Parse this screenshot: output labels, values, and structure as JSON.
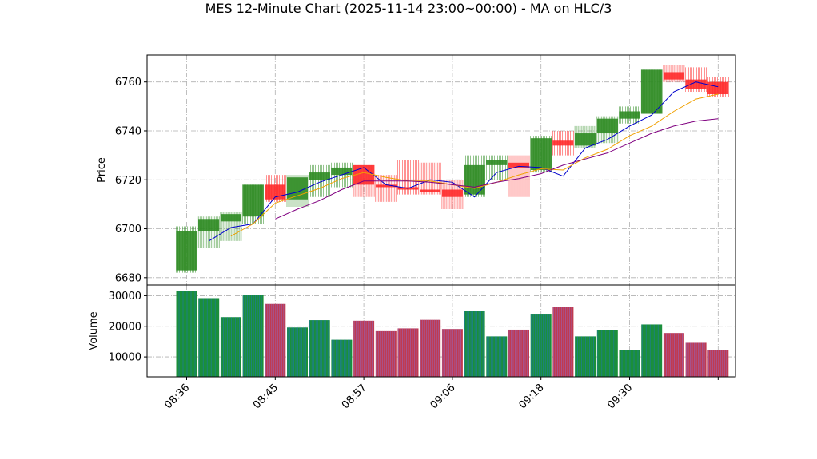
{
  "title": "MES 12-Minute Chart (2025-11-14 23:00~00:00) - MA on HLC/3",
  "colors": {
    "up": "#2e8b22",
    "down": "#ff2a2a",
    "ma_fast": "#0000cc",
    "ma_mid": "#f0a000",
    "ma_slow": "#800080",
    "volume_up_edge": "#1f77b4",
    "volume_down_edge": "#9467bd"
  },
  "chart_data": [
    {
      "type": "candlestick",
      "ylabel": "Price",
      "ylim": [
        6677,
        6771
      ],
      "yticks": [
        6680,
        6700,
        6720,
        6740,
        6760
      ],
      "grid": true,
      "candles": [
        {
          "open": 6683,
          "high": 6701,
          "low": 6682,
          "close": 6699
        },
        {
          "open": 6699,
          "high": 6705,
          "low": 6692,
          "close": 6704
        },
        {
          "open": 6703,
          "high": 6707,
          "low": 6695,
          "close": 6706
        },
        {
          "open": 6705,
          "high": 6718,
          "low": 6702,
          "close": 6718
        },
        {
          "open": 6718,
          "high": 6722,
          "low": 6711,
          "close": 6712
        },
        {
          "open": 6712,
          "high": 6722,
          "low": 6709,
          "close": 6721
        },
        {
          "open": 6720,
          "high": 6726,
          "low": 6713,
          "close": 6723
        },
        {
          "open": 6722,
          "high": 6727,
          "low": 6717,
          "close": 6725
        },
        {
          "open": 6726,
          "high": 6726,
          "low": 6713,
          "close": 6718
        },
        {
          "open": 6718,
          "high": 6722,
          "low": 6711,
          "close": 6717
        },
        {
          "open": 6717,
          "high": 6728,
          "low": 6714,
          "close": 6716
        },
        {
          "open": 6716,
          "high": 6727,
          "low": 6714,
          "close": 6715
        },
        {
          "open": 6716,
          "high": 6720,
          "low": 6708,
          "close": 6713
        },
        {
          "open": 6714,
          "high": 6730,
          "low": 6713,
          "close": 6726
        },
        {
          "open": 6726,
          "high": 6730,
          "low": 6720,
          "close": 6728
        },
        {
          "open": 6727,
          "high": 6730,
          "low": 6713,
          "close": 6725
        },
        {
          "open": 6724,
          "high": 6738,
          "low": 6723,
          "close": 6737
        },
        {
          "open": 6736,
          "high": 6740,
          "low": 6730,
          "close": 6734
        },
        {
          "open": 6734,
          "high": 6742,
          "low": 6733,
          "close": 6739
        },
        {
          "open": 6739,
          "high": 6746,
          "low": 6735,
          "close": 6745
        },
        {
          "open": 6745,
          "high": 6750,
          "low": 6743,
          "close": 6748
        },
        {
          "open": 6747,
          "high": 6765,
          "low": 6747,
          "close": 6765
        },
        {
          "open": 6764,
          "high": 6767,
          "low": 6760,
          "close": 6761
        },
        {
          "open": 6761,
          "high": 6766,
          "low": 6756,
          "close": 6757
        },
        {
          "open": 6760,
          "high": 6762,
          "low": 6754,
          "close": 6755
        }
      ],
      "series": [
        {
          "key": "ma_fast",
          "values": [
            null,
            6695,
            6700.5,
            6702,
            6713,
            6715,
            6719,
            6722,
            6725,
            6718,
            6716.5,
            6720,
            6719,
            6713,
            6723,
            6725.5,
            6725,
            6721.5,
            6733,
            6736.5,
            6742,
            6746.5,
            6756,
            6760,
            6758
          ]
        },
        {
          "key": "ma_mid",
          "values": [
            null,
            null,
            6697,
            6702,
            6710.5,
            6713.5,
            6716.5,
            6720.5,
            6723,
            6721,
            6719.5,
            6719.5,
            6718,
            6716.5,
            6719,
            6722,
            6724.5,
            6724,
            6729,
            6732.5,
            6738,
            6742,
            6748,
            6753,
            6755
          ]
        },
        {
          "key": "ma_slow",
          "values": [
            null,
            null,
            null,
            null,
            6704,
            6708,
            6711.5,
            6716,
            6719.5,
            6719.5,
            6719.5,
            6719,
            6718,
            6717,
            6719,
            6720.5,
            6722.5,
            6726,
            6728.5,
            6731,
            6735,
            6739,
            6742,
            6744,
            6745
          ]
        }
      ]
    },
    {
      "type": "bar",
      "ylabel": "Volume",
      "ylim": [
        3500,
        33500
      ],
      "yticks": [
        10000,
        20000,
        30000
      ],
      "grid": true,
      "values": [
        31500,
        29200,
        23000,
        30200,
        27300,
        19600,
        22000,
        15600,
        21800,
        18400,
        19300,
        22100,
        19100,
        24900,
        16700,
        18900,
        24100,
        26200,
        16700,
        18800,
        12200,
        20600,
        17800,
        14600,
        12200
      ]
    }
  ],
  "x_axis": {
    "tick_labels": [
      "08:36",
      "08:45",
      "08:57",
      "09:06",
      "09:18",
      "09:30",
      ""
    ]
  }
}
